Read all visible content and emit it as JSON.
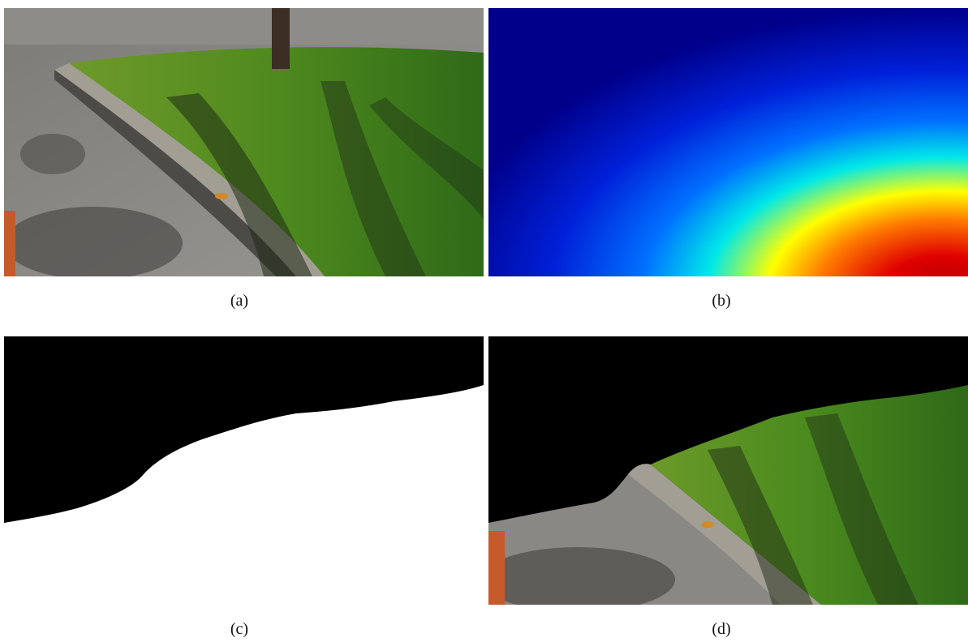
{
  "figure": {
    "panels": [
      {
        "id": "a",
        "caption": "(a)",
        "content": "rgb-image-street-curb-grass"
      },
      {
        "id": "b",
        "caption": "(b)",
        "content": "depth-map-jet-colormap"
      },
      {
        "id": "c",
        "caption": "(c)",
        "content": "binary-mask-black-white"
      },
      {
        "id": "d",
        "caption": "(d)",
        "content": "masked-rgb-image"
      }
    ]
  },
  "colors": {
    "asphalt": "#8d8b87",
    "curb": "#9b978d",
    "grass": "#3f7a1f",
    "shadow": "#1f2a16",
    "depth_far": "#00008f",
    "depth_mid": "#00c8ff",
    "depth_warm": "#ffff00",
    "depth_near": "#d40000",
    "mask_on": "#ffffff",
    "mask_off": "#000000"
  }
}
